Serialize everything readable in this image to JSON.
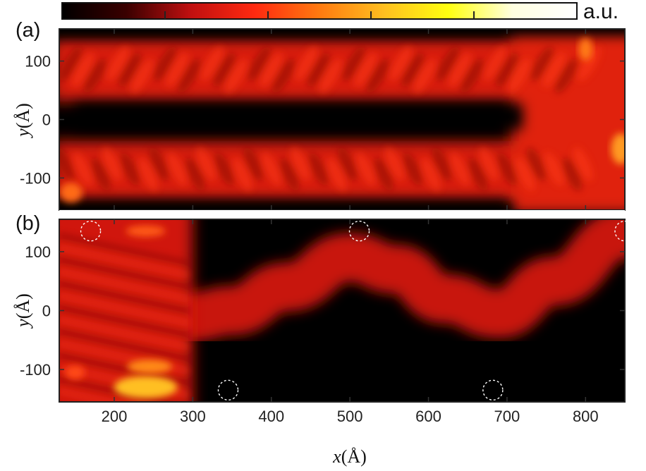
{
  "colorbar": {
    "label": "a.u.",
    "colors": [
      "#000000",
      "#3a0000",
      "#c01010",
      "#ff2a10",
      "#ff7a10",
      "#ffbf20",
      "#ffff10",
      "#ffffe0",
      "#ffffff"
    ]
  },
  "chart_data": [
    {
      "type": "heatmap",
      "panel": "(a)",
      "ylabel_var": "y",
      "ylabel_unit": "(Å)",
      "xlim": [
        130,
        850
      ],
      "ylim": [
        -155,
        155
      ],
      "yticks": [
        100,
        0,
        -100
      ],
      "ytick_labels": [
        "100",
        "0",
        "-100"
      ],
      "xticks": [
        200,
        300,
        400,
        500,
        600,
        700,
        800
      ],
      "description_values": {
        "bright_band_upper_center_y": 85,
        "bright_band_lower_center_y": -85,
        "dark_gap_center_y": 5
      },
      "circles": []
    },
    {
      "type": "heatmap",
      "panel": "(b)",
      "ylabel_var": "y",
      "ylabel_unit": "(Å)",
      "xlabel_var": "x",
      "xlabel_unit": "(Å)",
      "xlim": [
        130,
        850
      ],
      "ylim": [
        -155,
        155
      ],
      "xticks": [
        200,
        300,
        400,
        500,
        600,
        700,
        800
      ],
      "xtick_labels": [
        "200",
        "300",
        "400",
        "500",
        "600",
        "700",
        "800"
      ],
      "yticks": [
        100,
        0,
        -100
      ],
      "ytick_labels": [
        "100",
        "0",
        "-100"
      ],
      "band_path": [
        {
          "x": 300,
          "y": -10
        },
        {
          "x": 350,
          "y": 0
        },
        {
          "x": 420,
          "y": 40
        },
        {
          "x": 500,
          "y": 90
        },
        {
          "x": 560,
          "y": 70
        },
        {
          "x": 620,
          "y": 20
        },
        {
          "x": 690,
          "y": -5
        },
        {
          "x": 760,
          "y": 50
        },
        {
          "x": 850,
          "y": 130
        }
      ],
      "circles": [
        {
          "x": 170,
          "y": 135
        },
        {
          "x": 512,
          "y": 135
        },
        {
          "x": 850,
          "y": 135
        },
        {
          "x": 345,
          "y": -135
        },
        {
          "x": 682,
          "y": -135
        }
      ]
    }
  ]
}
